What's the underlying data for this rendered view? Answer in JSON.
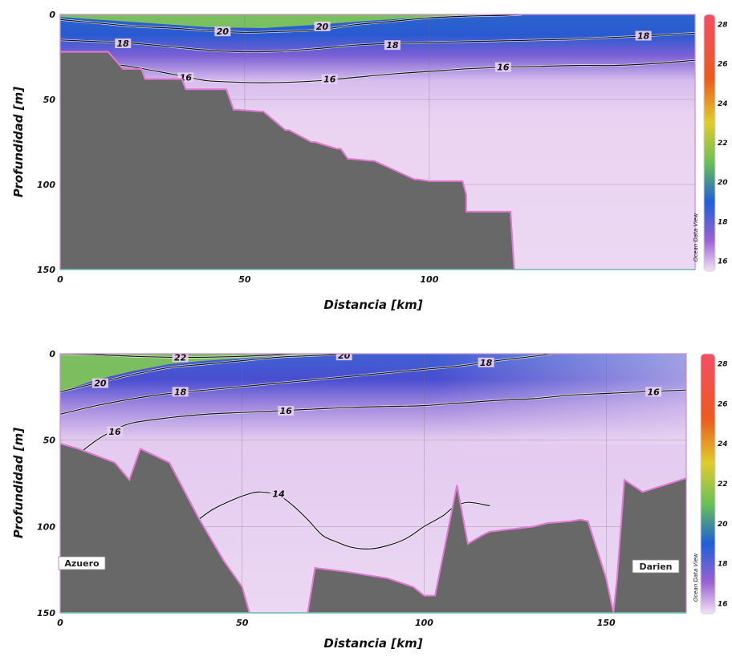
{
  "chart_data": [
    {
      "type": "heatmap",
      "xlabel": "Distancia [km]",
      "ylabel": "Profundidad [m]",
      "xlim": [
        0,
        172
      ],
      "ylim": [
        150,
        0
      ],
      "xticks": [
        0,
        50,
        100
      ],
      "xtick_labels": [
        "0",
        "50",
        "100"
      ],
      "yticks": [
        0,
        50,
        100,
        150
      ],
      "ytick_labels": [
        "0",
        "50",
        "100",
        "150"
      ],
      "colorbar": {
        "label": "Ocean Data View",
        "ticks": [
          16,
          18,
          20,
          22,
          24,
          26,
          28
        ],
        "tick_labels": [
          "16",
          "18",
          "20",
          "22",
          "24",
          "26",
          "28"
        ],
        "min": 15.5,
        "max": 28.5
      },
      "bathymetry": {
        "x": [
          0,
          9,
          10,
          11,
          12,
          13,
          17,
          19,
          22,
          23,
          33,
          34,
          44,
          45,
          47,
          48,
          54,
          55,
          61,
          62,
          68,
          69,
          75,
          76,
          78,
          79,
          84,
          85,
          96,
          97,
          100,
          101,
          109,
          110,
          110,
          111,
          120,
          121,
          122,
          123,
          123
        ],
        "y": [
          22,
          22,
          22,
          22,
          22,
          22,
          32,
          32,
          32,
          38,
          38,
          44,
          44,
          44,
          56,
          56,
          57,
          57,
          68,
          68,
          75,
          75,
          79,
          79,
          85,
          85,
          86,
          86,
          97,
          97,
          98,
          98,
          98,
          106,
          116,
          116,
          116,
          116,
          116,
          150,
          150
        ]
      },
      "contours": [
        {
          "level": 20,
          "label": "20",
          "x": [
            0,
            10,
            20,
            30,
            40,
            50,
            60,
            70,
            80,
            90,
            100,
            110,
            120,
            125
          ],
          "y": [
            3,
            5,
            7,
            8,
            9.5,
            10.5,
            10,
            9,
            6,
            4,
            2,
            1,
            0.5,
            0
          ]
        },
        {
          "level": 18,
          "label": "18",
          "x": [
            0,
            10,
            20,
            30,
            40,
            50,
            60,
            70,
            80,
            90,
            100,
            110,
            120,
            130,
            140,
            150,
            160,
            172
          ],
          "y": [
            15,
            16,
            17,
            19,
            21,
            22,
            21.5,
            20,
            18,
            17,
            16.5,
            16,
            15.5,
            15,
            14.5,
            13.5,
            12.5,
            11
          ]
        },
        {
          "level": 16,
          "label": "16",
          "x": [
            10,
            20,
            30,
            35,
            40,
            50,
            60,
            70,
            80,
            90,
            100,
            110,
            120,
            130,
            140,
            150,
            160,
            172
          ],
          "y": [
            28,
            31,
            35,
            37,
            39,
            40,
            40,
            39,
            37,
            35,
            33.5,
            32,
            31,
            30.5,
            30,
            30,
            29,
            27
          ]
        }
      ],
      "contour_labels": [
        {
          "text": "20",
          "x": 44,
          "y": 10
        },
        {
          "text": "20",
          "x": 71,
          "y": 7
        },
        {
          "text": "18",
          "x": 17,
          "y": 17
        },
        {
          "text": "18",
          "x": 90,
          "y": 18
        },
        {
          "text": "18",
          "x": 158,
          "y": 12.5
        },
        {
          "text": "16",
          "x": 34,
          "y": 37
        },
        {
          "text": "16",
          "x": 73,
          "y": 38
        },
        {
          "text": "16",
          "x": 120,
          "y": 31
        }
      ],
      "colors": {
        "warm_surface": "#7ec45a",
        "thermocline": "#1c58c8",
        "deep_water": "#e6ccee",
        "bottom": "#686868",
        "bottom_edge": "#e07ad2"
      }
    },
    {
      "type": "heatmap",
      "xlabel": "Distancia [km]",
      "ylabel": "Profundidad [m]",
      "xlim": [
        0,
        172
      ],
      "ylim": [
        150,
        0
      ],
      "xticks": [
        0,
        50,
        100,
        150
      ],
      "xtick_labels": [
        "0",
        "50",
        "100",
        "150"
      ],
      "yticks": [
        0,
        50,
        100,
        150
      ],
      "ytick_labels": [
        "0",
        "50",
        "100",
        "150"
      ],
      "colorbar": {
        "label": "Ocean Data View",
        "ticks": [
          16,
          18,
          20,
          22,
          24,
          26,
          28
        ],
        "tick_labels": [
          "16",
          "18",
          "20",
          "22",
          "24",
          "26",
          "28"
        ],
        "min": 15.5,
        "max": 28.5
      },
      "bathymetry": [
        {
          "x": [
            0,
            5,
            15,
            19,
            22,
            30,
            38,
            45,
            50,
            52
          ],
          "y": [
            52,
            55,
            63,
            73,
            55,
            63,
            95,
            120,
            135,
            150
          ]
        },
        {
          "x": [
            68,
            70,
            78,
            90,
            97,
            100,
            101,
            103,
            109,
            112,
            116,
            118,
            130,
            134,
            140,
            143,
            145,
            150,
            152,
            153,
            155,
            160,
            172
          ],
          "y": [
            150,
            124,
            126,
            130,
            135,
            140,
            140,
            140,
            76,
            110,
            105,
            103,
            100,
            98,
            97,
            96,
            97,
            130,
            150,
            130,
            73,
            80,
            72
          ]
        }
      ],
      "contours": [
        {
          "level": 22,
          "label": "22",
          "x": [
            0,
            10,
            20,
            30,
            40,
            50,
            60,
            65
          ],
          "y": [
            0,
            0.5,
            1.5,
            2,
            2,
            1.5,
            0.5,
            0
          ]
        },
        {
          "level": 20,
          "label": "20",
          "x": [
            0,
            10,
            20,
            30,
            40,
            50,
            60,
            70,
            80
          ],
          "y": [
            22,
            17,
            12,
            8,
            6,
            4,
            2,
            1,
            0
          ]
        },
        {
          "level": 18,
          "label": "18",
          "x": [
            0,
            10,
            20,
            30,
            40,
            50,
            60,
            70,
            80,
            90,
            100,
            110,
            120,
            130,
            135
          ],
          "y": [
            35,
            30,
            26,
            23,
            21,
            19,
            17,
            15,
            13,
            11,
            9,
            7,
            4,
            1.5,
            0
          ]
        },
        {
          "level": 16,
          "label": "16",
          "x": [
            5,
            10,
            15,
            20,
            30,
            40,
            50,
            60,
            70,
            80,
            90,
            100,
            110,
            120,
            130,
            140,
            150,
            160,
            172
          ],
          "y": [
            58,
            50,
            44,
            40,
            37,
            35,
            34,
            33,
            32,
            31,
            30.5,
            30,
            28.5,
            27,
            26,
            24,
            23,
            22,
            21
          ]
        },
        {
          "level": 14,
          "label": "14",
          "x": [
            38,
            42,
            48,
            52,
            55,
            60,
            64,
            68,
            72,
            76,
            80,
            85,
            90,
            95,
            100,
            105,
            108,
            112,
            118
          ],
          "y": [
            96,
            90,
            84,
            81,
            80,
            82,
            88,
            96,
            105,
            109,
            112,
            113,
            111,
            107,
            100,
            94,
            89,
            86,
            88
          ]
        }
      ],
      "contour_labels": [
        {
          "text": "22",
          "x": 33,
          "y": 2
        },
        {
          "text": "20",
          "x": 78,
          "y": 1
        },
        {
          "text": "20",
          "x": 11,
          "y": 17
        },
        {
          "text": "18",
          "x": 33,
          "y": 22
        },
        {
          "text": "18",
          "x": 117,
          "y": 5
        },
        {
          "text": "16",
          "x": 15,
          "y": 45
        },
        {
          "text": "16",
          "x": 62,
          "y": 33
        },
        {
          "text": "16",
          "x": 163,
          "y": 22
        },
        {
          "text": "14",
          "x": 60,
          "y": 81
        }
      ],
      "place_labels": [
        "Azuero",
        "Darien"
      ],
      "colors": {
        "warm_surface": "#7ec45a",
        "thermocline": "#1c58c8",
        "deep_water": "#e6ccee",
        "bottom": "#686868",
        "bottom_edge": "#e07ad2"
      }
    }
  ]
}
